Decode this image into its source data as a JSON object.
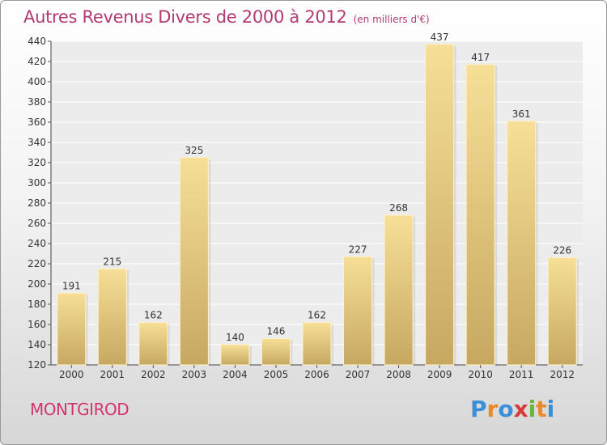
{
  "title": {
    "main": "Autres Revenus Divers de 2000 à 2012",
    "unit": "(en milliers d'€)"
  },
  "town": "MONTGIROD",
  "logo": {
    "letters": [
      "P",
      "r",
      "o",
      "x",
      "i",
      "t",
      "i"
    ],
    "colors": [
      "#3a8fd6",
      "#e9892a",
      "#3a8fd6",
      "#d63a3a",
      "#6cb33f",
      "#e9892a",
      "#3a8fd6"
    ]
  },
  "colors": {
    "title": "#b23a73",
    "bar": "#eccf83",
    "bar_dark": "#c8ab62"
  },
  "chart_data": {
    "type": "bar",
    "categories": [
      "2000",
      "2001",
      "2002",
      "2003",
      "2004",
      "2005",
      "2006",
      "2007",
      "2008",
      "2009",
      "2010",
      "2011",
      "2012"
    ],
    "values": [
      191,
      215,
      162,
      325,
      140,
      146,
      162,
      227,
      268,
      437,
      417,
      361,
      226
    ],
    "data_labels": [
      "191",
      "215",
      "162",
      "325",
      "140",
      "146",
      "162",
      "227",
      "268",
      "437",
      "417",
      "361",
      "226"
    ],
    "ylim": [
      120,
      440
    ],
    "yticks": [
      120,
      140,
      160,
      180,
      200,
      220,
      240,
      260,
      280,
      300,
      320,
      340,
      360,
      380,
      400,
      420,
      440
    ],
    "grid": true
  }
}
